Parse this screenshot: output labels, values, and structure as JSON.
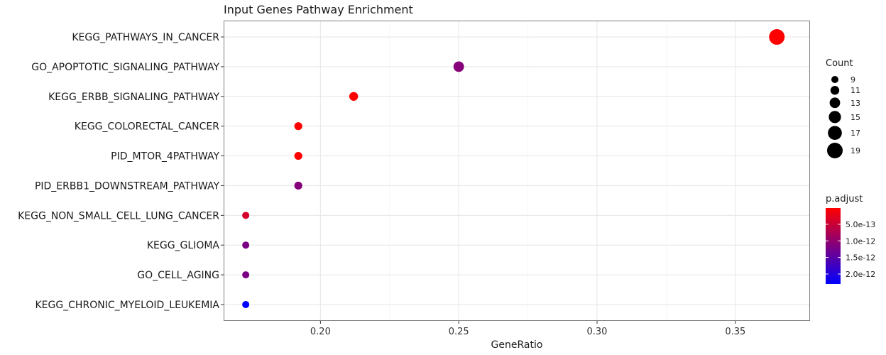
{
  "chart_data": {
    "type": "scatter",
    "title": "Input Genes Pathway Enrichment",
    "xlabel": "GeneRatio",
    "ylabel": "",
    "xlim": [
      0.165,
      0.377
    ],
    "xticks": [
      0.2,
      0.25,
      0.3,
      0.35
    ],
    "xtick_labels": [
      "0.20",
      "0.25",
      "0.30",
      "0.35"
    ],
    "grid": true,
    "legend_position": "right",
    "categories": [
      "KEGG_PATHWAYS_IN_CANCER",
      "GO_APOPTOTIC_SIGNALING_PATHWAY",
      "KEGG_ERBB_SIGNALING_PATHWAY",
      "KEGG_COLORECTAL_CANCER",
      "PID_MTOR_4PATHWAY",
      "PID_ERBB1_DOWNSTREAM_PATHWAY",
      "KEGG_NON_SMALL_CELL_LUNG_CANCER",
      "KEGG_GLIOMA",
      "GO_CELL_AGING",
      "KEGG_CHRONIC_MYELOID_LEUKEMIA"
    ],
    "points": [
      {
        "term": "KEGG_PATHWAYS_IN_CANCER",
        "gene_ratio": 0.365,
        "count": 19,
        "p_adjust": 1e-14
      },
      {
        "term": "GO_APOPTOTIC_SIGNALING_PATHWAY",
        "gene_ratio": 0.25,
        "count": 13,
        "p_adjust": 1.1e-12
      },
      {
        "term": "KEGG_ERBB_SIGNALING_PATHWAY",
        "gene_ratio": 0.212,
        "count": 11,
        "p_adjust": 1e-14
      },
      {
        "term": "KEGG_COLORECTAL_CANCER",
        "gene_ratio": 0.192,
        "count": 10,
        "p_adjust": 1e-14
      },
      {
        "term": "PID_MTOR_4PATHWAY",
        "gene_ratio": 0.192,
        "count": 10,
        "p_adjust": 1e-14
      },
      {
        "term": "PID_ERBB1_DOWNSTREAM_PATHWAY",
        "gene_ratio": 0.192,
        "count": 10,
        "p_adjust": 1.1e-12
      },
      {
        "term": "KEGG_NON_SMALL_CELL_LUNG_CANCER",
        "gene_ratio": 0.173,
        "count": 9,
        "p_adjust": 4e-13
      },
      {
        "term": "KEGG_GLIOMA",
        "gene_ratio": 0.173,
        "count": 9,
        "p_adjust": 1.2e-12
      },
      {
        "term": "GO_CELL_AGING",
        "gene_ratio": 0.173,
        "count": 9,
        "p_adjust": 1.2e-12
      },
      {
        "term": "KEGG_CHRONIC_MYELOID_LEUKEMIA",
        "gene_ratio": 0.173,
        "count": 9,
        "p_adjust": 2.3e-12
      }
    ],
    "size_legend": {
      "title": "Count",
      "values": [
        9,
        11,
        13,
        15,
        17,
        19
      ],
      "labels": [
        "9",
        "11",
        "13",
        "15",
        "17",
        "19"
      ]
    },
    "color_legend": {
      "title": "p.adjust",
      "low_color": "#ff0000",
      "high_color": "#0000ff",
      "min": 1e-14,
      "max": 2.3e-12,
      "ticks": [
        5e-13,
        1e-12,
        1.5e-12,
        2e-12
      ],
      "tick_labels": [
        "5.0e-13",
        "1.0e-12",
        "1.5e-12",
        "2.0e-12"
      ]
    }
  }
}
